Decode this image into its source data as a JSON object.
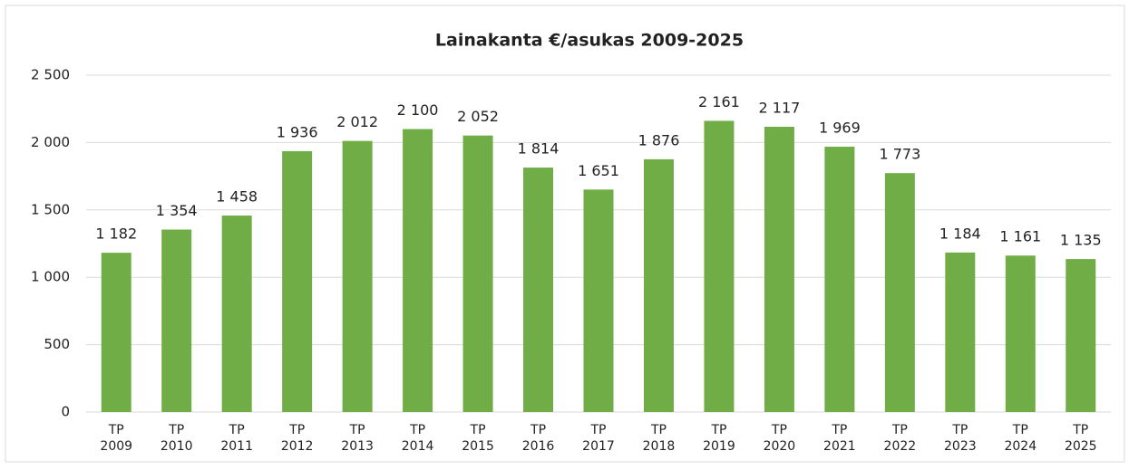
{
  "chart_data": {
    "type": "bar",
    "title": "Lainakanta €/asukas 2009-2025",
    "categories": [
      "TP 2009",
      "TP 2010",
      "TP 2011",
      "TP 2012",
      "TP 2013",
      "TP 2014",
      "TP 2015",
      "TP 2016",
      "TP 2017",
      "TP 2018",
      "TP 2019",
      "TP 2020",
      "TP 2021",
      "TP 2022",
      "TP 2023",
      "TP 2024",
      "TP 2025"
    ],
    "values": [
      1182,
      1354,
      1458,
      1936,
      2012,
      2100,
      2052,
      1814,
      1651,
      1876,
      2161,
      2117,
      1969,
      1773,
      1184,
      1161,
      1135
    ],
    "value_labels": [
      "1 182",
      "1 354",
      "1 458",
      "1 936",
      "2 012",
      "2 100",
      "2 052",
      "1 814",
      "1 651",
      "1 876",
      "2 161",
      "2 117",
      "1 969",
      "1 773",
      "1 184",
      "1 161",
      "1 135"
    ],
    "color": "#70ad47",
    "ylim": [
      0,
      2500
    ],
    "yticks": [
      0,
      500,
      {
        "value": 1000,
        "label": "1 000"
      },
      {
        "value": 1500,
        "label": "1 500"
      },
      {
        "value": 2000,
        "label": "2 000"
      },
      {
        "value": 2500,
        "label": "2 500"
      }
    ],
    "grid": true
  }
}
